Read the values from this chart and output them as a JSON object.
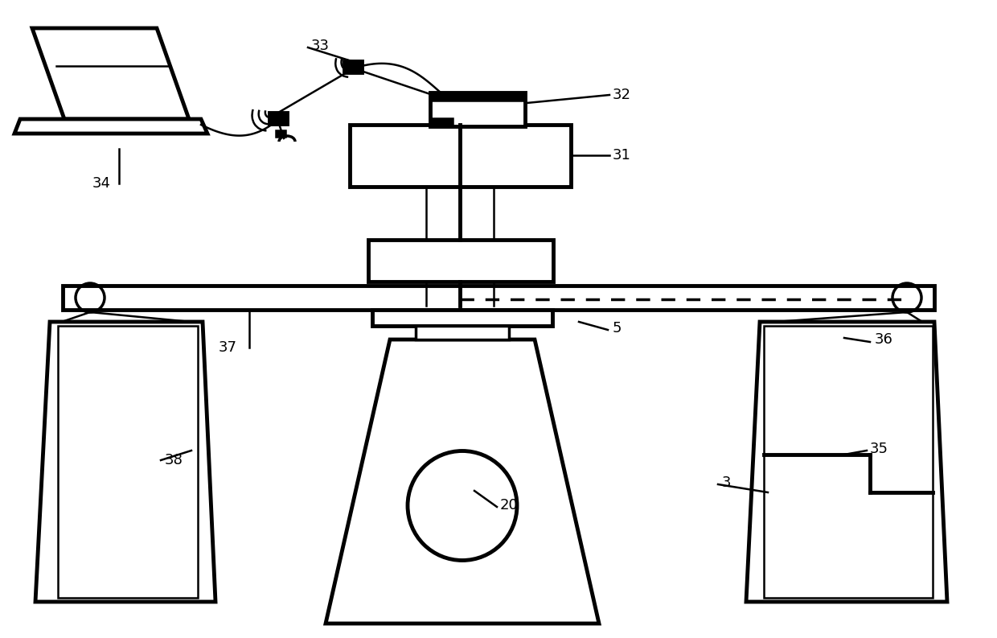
{
  "bg_color": "#ffffff",
  "lc": "#000000",
  "lw": 1.8,
  "lw2": 2.5,
  "lw3": 3.5,
  "fs": 13,
  "labels": [
    [
      "31",
      762,
      193
    ],
    [
      "32",
      762,
      118
    ],
    [
      "33",
      387,
      57
    ],
    [
      "34",
      115,
      228
    ],
    [
      "5",
      762,
      408
    ],
    [
      "20",
      622,
      628
    ],
    [
      "36",
      1088,
      422
    ],
    [
      "37",
      272,
      432
    ],
    [
      "38",
      205,
      572
    ],
    [
      "35",
      1082,
      558
    ],
    [
      "3",
      898,
      600
    ]
  ]
}
